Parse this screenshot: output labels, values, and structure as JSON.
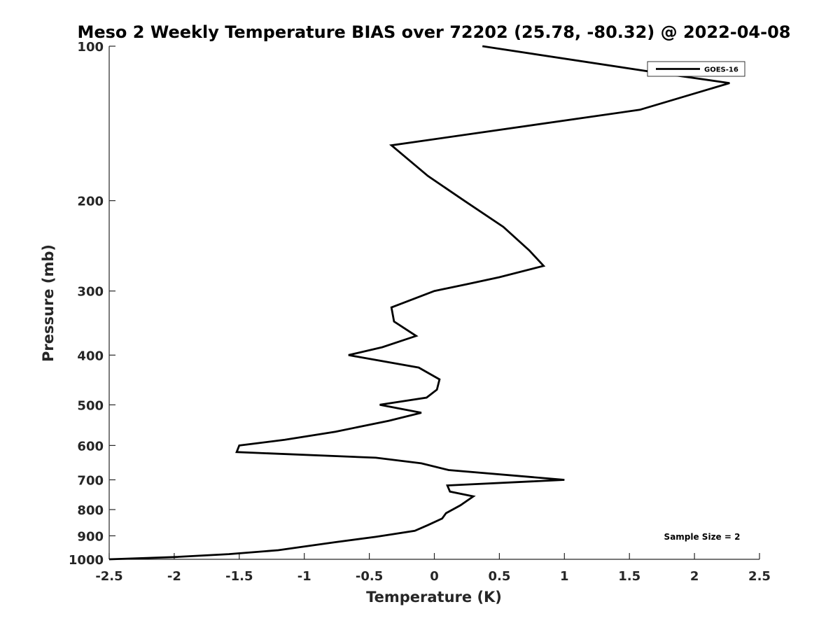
{
  "chart_data": {
    "type": "line",
    "title": "Meso 2 Weekly Temperature BIAS over 72202 (25.78, -80.32) @ 2022-04-08",
    "xlabel": "Temperature (K)",
    "ylabel": "Pressure (mb)",
    "xlim": [
      -2.5,
      2.5
    ],
    "ylim": [
      100,
      1000
    ],
    "y_scale": "log",
    "y_reversed": true,
    "grid": false,
    "legend_position": "top-right",
    "x_ticks": [
      -2.5,
      -2,
      -1.5,
      -1,
      -0.5,
      0,
      0.5,
      1,
      1.5,
      2,
      2.5
    ],
    "x_tick_labels": [
      "-2.5",
      "-2",
      "-1.5",
      "-1",
      "-0.5",
      "0",
      "0.5",
      "1",
      "1.5",
      "2",
      "2.5"
    ],
    "y_ticks": [
      100,
      200,
      300,
      400,
      500,
      600,
      700,
      800,
      900,
      1000
    ],
    "y_tick_labels": [
      "100",
      "200",
      "300",
      "400",
      "500",
      "600",
      "700",
      "800",
      "900",
      "1000"
    ],
    "annotation": "Sample Size = 2",
    "series": [
      {
        "name": "GOES-16",
        "color": "#000000",
        "points": [
          {
            "x": 0.37,
            "p": 100
          },
          {
            "x": 1.75,
            "p": 113
          },
          {
            "x": 2.27,
            "p": 118
          },
          {
            "x": 1.58,
            "p": 133
          },
          {
            "x": -0.33,
            "p": 156
          },
          {
            "x": -0.05,
            "p": 179
          },
          {
            "x": 0.23,
            "p": 200
          },
          {
            "x": 0.53,
            "p": 225
          },
          {
            "x": 0.73,
            "p": 250
          },
          {
            "x": 0.84,
            "p": 268
          },
          {
            "x": 0.5,
            "p": 282
          },
          {
            "x": 0.25,
            "p": 291
          },
          {
            "x": 0.0,
            "p": 300
          },
          {
            "x": -0.33,
            "p": 323
          },
          {
            "x": -0.31,
            "p": 344
          },
          {
            "x": -0.14,
            "p": 367
          },
          {
            "x": -0.4,
            "p": 386
          },
          {
            "x": -0.66,
            "p": 400
          },
          {
            "x": -0.12,
            "p": 423
          },
          {
            "x": 0.04,
            "p": 446
          },
          {
            "x": 0.02,
            "p": 467
          },
          {
            "x": -0.06,
            "p": 484
          },
          {
            "x": -0.42,
            "p": 500
          },
          {
            "x": -0.1,
            "p": 518
          },
          {
            "x": -0.35,
            "p": 537
          },
          {
            "x": -0.76,
            "p": 564
          },
          {
            "x": -1.15,
            "p": 585
          },
          {
            "x": -1.5,
            "p": 600
          },
          {
            "x": -1.52,
            "p": 618
          },
          {
            "x": -0.45,
            "p": 634
          },
          {
            "x": -0.1,
            "p": 650
          },
          {
            "x": 0.11,
            "p": 670
          },
          {
            "x": 1.0,
            "p": 700
          },
          {
            "x": 0.1,
            "p": 718
          },
          {
            "x": 0.12,
            "p": 738
          },
          {
            "x": 0.3,
            "p": 754
          },
          {
            "x": 0.2,
            "p": 785
          },
          {
            "x": 0.09,
            "p": 813
          },
          {
            "x": 0.06,
            "p": 833
          },
          {
            "x": -0.05,
            "p": 858
          },
          {
            "x": -0.15,
            "p": 880
          },
          {
            "x": -0.45,
            "p": 904
          },
          {
            "x": -0.76,
            "p": 926
          },
          {
            "x": -1.0,
            "p": 944
          },
          {
            "x": -1.2,
            "p": 960
          },
          {
            "x": -1.58,
            "p": 977
          },
          {
            "x": -2.0,
            "p": 990
          },
          {
            "x": -2.5,
            "p": 1000
          }
        ]
      }
    ]
  }
}
